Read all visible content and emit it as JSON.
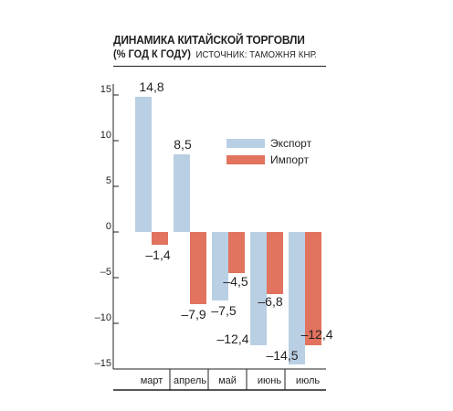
{
  "chart_data": {
    "type": "bar",
    "title": "ДИНАМИКА КИТАЙСКОЙ ТОРГОВЛИ",
    "subtitle": "(% ГОД К ГОДУ)",
    "source": "ИСТОЧНИК: ТАМОЖНЯ КНР.",
    "categories": [
      "март",
      "апрель",
      "май",
      "июнь",
      "июль"
    ],
    "series": [
      {
        "name": "Экспорт",
        "color": "#b9cfe3",
        "values": [
          14.8,
          8.5,
          -7.5,
          -12.4,
          -14.5
        ]
      },
      {
        "name": "Импорт",
        "color": "#e2735f",
        "values": [
          -1.4,
          -7.9,
          -4.5,
          -6.8,
          -12.4
        ]
      }
    ],
    "value_labels": {
      "Экспорт": [
        "14,8",
        "8,5",
        "–7,5",
        "–12,4",
        "–14,5"
      ],
      "Импорт": [
        "–1,4",
        "–7,9",
        "–4,5",
        "–6,8",
        "–12,4"
      ]
    },
    "yticks": [
      15,
      10,
      5,
      0,
      -5,
      -10,
      -15
    ],
    "ytick_labels": [
      "15",
      "10",
      "5",
      "0",
      "–5",
      "–10",
      "–15"
    ],
    "ylim": [
      -15,
      16
    ],
    "legend_position": "top-right",
    "grid": false
  }
}
